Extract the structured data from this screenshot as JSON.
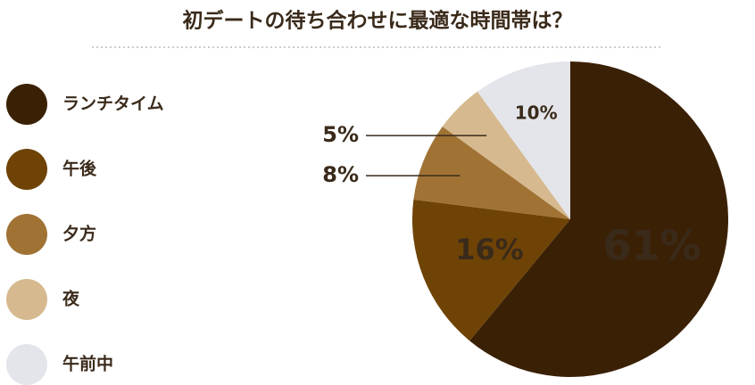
{
  "chart_data": {
    "type": "pie",
    "title": "初デートの待ち合わせに最適な時間帯は？",
    "categories": [
      "ランチタイム",
      "午後",
      "夕方",
      "夜",
      "午前中"
    ],
    "values": [
      61,
      16,
      8,
      5,
      10
    ],
    "value_labels": [
      "61%",
      "16%",
      "8%",
      "5%",
      "10%"
    ],
    "colors": [
      "#3a2106",
      "#6e4305",
      "#a07335",
      "#d6b98e",
      "#e3e5ea"
    ],
    "legend": "left"
  }
}
